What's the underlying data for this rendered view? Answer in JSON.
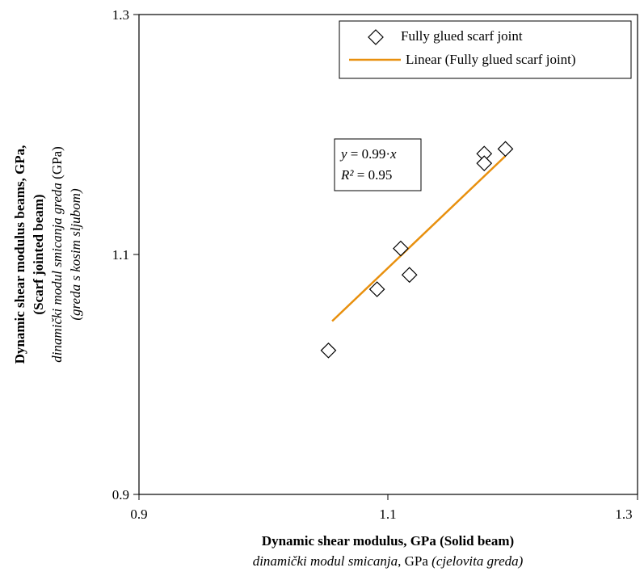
{
  "chart_data": {
    "type": "scatter",
    "title": "",
    "xlim": [
      0.9,
      1.3
    ],
    "ylim": [
      0.9,
      1.3
    ],
    "x_ticks": [
      "0.9",
      "1.1",
      "1.3"
    ],
    "y_ticks": [
      "0.9",
      "1.1",
      "1.3"
    ],
    "xlabel": {
      "line1": "Dynamic shear modulus, GPa (Solid beam)",
      "line2_italic_a": "dinamički modul smicanja",
      "line2_normal": ", GPa ",
      "line2_italic_b": "(cjelovita greda)"
    },
    "ylabel": {
      "line1": "Dynamic shear modulus beams, GPa,",
      "line2": "(Scarf jointed beam)",
      "line3_italic": "dinamički modul smicanja greda",
      "line3_normal": " (GPa)",
      "line4_italic": "(greda s kosim sljubom)"
    },
    "series": [
      {
        "name": "Fully glued scarf joint",
        "marker": "diamond-open",
        "points": [
          {
            "x": 1.052,
            "y": 1.02
          },
          {
            "x": 1.091,
            "y": 1.071
          },
          {
            "x": 1.11,
            "y": 1.105
          },
          {
            "x": 1.117,
            "y": 1.083
          },
          {
            "x": 1.177,
            "y": 1.184
          },
          {
            "x": 1.177,
            "y": 1.176
          },
          {
            "x": 1.194,
            "y": 1.188
          }
        ]
      }
    ],
    "trendline": {
      "name": "Linear (Fully glued scarf joint)",
      "color": "#E8900E",
      "x_start": 1.055,
      "x_end": 1.194,
      "slope": 0.99
    },
    "annotation": {
      "eq_var": "y",
      "eq_rest": " = 0.99·",
      "eq_x": "x",
      "r2_label": "R²",
      "r2_value": " = 0.95"
    },
    "legend_position": "top-right",
    "grid": false
  }
}
